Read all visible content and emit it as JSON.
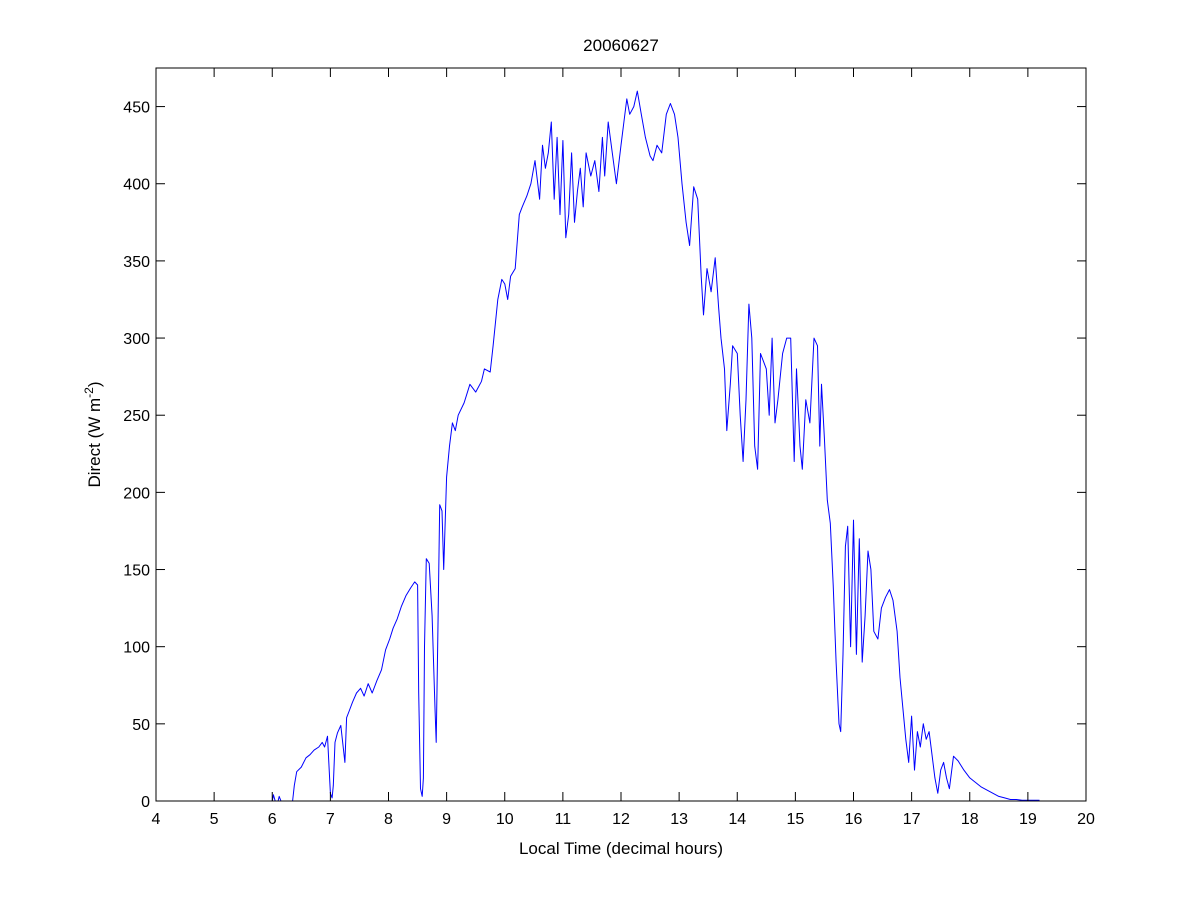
{
  "chart_data": {
    "type": "line",
    "title": "20060627",
    "xlabel": "Local Time (decimal hours)",
    "ylabel": {
      "prefix": "Direct (W m",
      "superscript": "-2",
      "suffix": ")"
    },
    "xlim": [
      4,
      20
    ],
    "ylim": [
      0,
      475
    ],
    "xticks": [
      4,
      5,
      6,
      7,
      8,
      9,
      10,
      11,
      12,
      13,
      14,
      15,
      16,
      17,
      18,
      19,
      20
    ],
    "yticks": [
      0,
      50,
      100,
      150,
      200,
      250,
      300,
      350,
      400,
      450
    ],
    "grid": false,
    "legend": "none",
    "series_color": "#0000ff",
    "series": [
      {
        "points": [
          [
            5.45,
            0
          ],
          [
            6.0,
            0
          ],
          [
            6.02,
            4
          ],
          [
            6.05,
            0
          ],
          [
            6.1,
            0
          ],
          [
            6.12,
            3
          ],
          [
            6.15,
            0
          ],
          [
            6.35,
            0
          ],
          [
            6.38,
            10
          ],
          [
            6.42,
            19
          ],
          [
            6.5,
            22
          ],
          [
            6.58,
            28
          ],
          [
            6.65,
            30
          ],
          [
            6.72,
            33
          ],
          [
            6.8,
            35
          ],
          [
            6.86,
            38
          ],
          [
            6.9,
            35
          ],
          [
            6.95,
            42
          ],
          [
            6.98,
            20
          ],
          [
            7.0,
            5
          ],
          [
            7.03,
            2
          ],
          [
            7.05,
            10
          ],
          [
            7.08,
            38
          ],
          [
            7.12,
            44
          ],
          [
            7.18,
            49
          ],
          [
            7.25,
            25
          ],
          [
            7.28,
            54
          ],
          [
            7.32,
            58
          ],
          [
            7.38,
            64
          ],
          [
            7.45,
            70
          ],
          [
            7.52,
            73
          ],
          [
            7.58,
            68
          ],
          [
            7.65,
            76
          ],
          [
            7.72,
            70
          ],
          [
            7.8,
            78
          ],
          [
            7.88,
            85
          ],
          [
            7.95,
            98
          ],
          [
            8.02,
            105
          ],
          [
            8.08,
            112
          ],
          [
            8.15,
            118
          ],
          [
            8.22,
            126
          ],
          [
            8.3,
            133
          ],
          [
            8.38,
            138
          ],
          [
            8.45,
            142
          ],
          [
            8.5,
            140
          ],
          [
            8.52,
            70
          ],
          [
            8.55,
            8
          ],
          [
            8.58,
            3
          ],
          [
            8.6,
            15
          ],
          [
            8.62,
            100
          ],
          [
            8.65,
            157
          ],
          [
            8.7,
            154
          ],
          [
            8.75,
            120
          ],
          [
            8.8,
            60
          ],
          [
            8.82,
            38
          ],
          [
            8.85,
            110
          ],
          [
            8.88,
            192
          ],
          [
            8.92,
            188
          ],
          [
            8.95,
            150
          ],
          [
            9.0,
            210
          ],
          [
            9.05,
            230
          ],
          [
            9.1,
            245
          ],
          [
            9.15,
            240
          ],
          [
            9.2,
            250
          ],
          [
            9.3,
            258
          ],
          [
            9.4,
            270
          ],
          [
            9.5,
            265
          ],
          [
            9.6,
            272
          ],
          [
            9.65,
            280
          ],
          [
            9.75,
            278
          ],
          [
            9.8,
            295
          ],
          [
            9.88,
            325
          ],
          [
            9.95,
            338
          ],
          [
            10.0,
            335
          ],
          [
            10.05,
            325
          ],
          [
            10.1,
            340
          ],
          [
            10.18,
            345
          ],
          [
            10.25,
            380
          ],
          [
            10.3,
            385
          ],
          [
            10.38,
            392
          ],
          [
            10.45,
            400
          ],
          [
            10.52,
            415
          ],
          [
            10.6,
            390
          ],
          [
            10.65,
            425
          ],
          [
            10.7,
            410
          ],
          [
            10.75,
            420
          ],
          [
            10.8,
            440
          ],
          [
            10.85,
            390
          ],
          [
            10.9,
            430
          ],
          [
            10.95,
            380
          ],
          [
            11.0,
            428
          ],
          [
            11.05,
            365
          ],
          [
            11.1,
            380
          ],
          [
            11.15,
            420
          ],
          [
            11.2,
            375
          ],
          [
            11.25,
            395
          ],
          [
            11.3,
            410
          ],
          [
            11.35,
            385
          ],
          [
            11.4,
            420
          ],
          [
            11.48,
            405
          ],
          [
            11.55,
            415
          ],
          [
            11.62,
            395
          ],
          [
            11.68,
            430
          ],
          [
            11.72,
            405
          ],
          [
            11.78,
            440
          ],
          [
            11.85,
            420
          ],
          [
            11.92,
            400
          ],
          [
            12.0,
            425
          ],
          [
            12.05,
            440
          ],
          [
            12.1,
            455
          ],
          [
            12.15,
            445
          ],
          [
            12.22,
            450
          ],
          [
            12.28,
            460
          ],
          [
            12.35,
            445
          ],
          [
            12.42,
            430
          ],
          [
            12.5,
            418
          ],
          [
            12.55,
            415
          ],
          [
            12.62,
            425
          ],
          [
            12.7,
            420
          ],
          [
            12.78,
            445
          ],
          [
            12.85,
            452
          ],
          [
            12.92,
            445
          ],
          [
            12.98,
            430
          ],
          [
            13.05,
            400
          ],
          [
            13.12,
            375
          ],
          [
            13.18,
            360
          ],
          [
            13.25,
            398
          ],
          [
            13.32,
            390
          ],
          [
            13.38,
            340
          ],
          [
            13.42,
            315
          ],
          [
            13.48,
            345
          ],
          [
            13.55,
            330
          ],
          [
            13.62,
            352
          ],
          [
            13.68,
            320
          ],
          [
            13.72,
            300
          ],
          [
            13.78,
            280
          ],
          [
            13.82,
            240
          ],
          [
            13.88,
            270
          ],
          [
            13.92,
            295
          ],
          [
            14.0,
            290
          ],
          [
            14.05,
            250
          ],
          [
            14.1,
            220
          ],
          [
            14.15,
            260
          ],
          [
            14.2,
            322
          ],
          [
            14.25,
            300
          ],
          [
            14.3,
            230
          ],
          [
            14.35,
            215
          ],
          [
            14.4,
            290
          ],
          [
            14.45,
            285
          ],
          [
            14.5,
            280
          ],
          [
            14.55,
            250
          ],
          [
            14.6,
            300
          ],
          [
            14.65,
            245
          ],
          [
            14.7,
            260
          ],
          [
            14.78,
            290
          ],
          [
            14.85,
            300
          ],
          [
            14.92,
            300
          ],
          [
            14.98,
            220
          ],
          [
            15.02,
            280
          ],
          [
            15.08,
            230
          ],
          [
            15.12,
            215
          ],
          [
            15.18,
            260
          ],
          [
            15.25,
            245
          ],
          [
            15.32,
            300
          ],
          [
            15.38,
            295
          ],
          [
            15.42,
            230
          ],
          [
            15.45,
            270
          ],
          [
            15.5,
            235
          ],
          [
            15.55,
            195
          ],
          [
            15.6,
            180
          ],
          [
            15.65,
            140
          ],
          [
            15.7,
            90
          ],
          [
            15.75,
            50
          ],
          [
            15.78,
            45
          ],
          [
            15.82,
            95
          ],
          [
            15.86,
            165
          ],
          [
            15.9,
            178
          ],
          [
            15.95,
            100
          ],
          [
            16.0,
            182
          ],
          [
            16.05,
            95
          ],
          [
            16.1,
            170
          ],
          [
            16.15,
            90
          ],
          [
            16.2,
            120
          ],
          [
            16.25,
            162
          ],
          [
            16.3,
            150
          ],
          [
            16.35,
            110
          ],
          [
            16.42,
            105
          ],
          [
            16.48,
            125
          ],
          [
            16.55,
            132
          ],
          [
            16.62,
            137
          ],
          [
            16.68,
            130
          ],
          [
            16.75,
            110
          ],
          [
            16.8,
            80
          ],
          [
            16.85,
            60
          ],
          [
            16.9,
            40
          ],
          [
            16.95,
            25
          ],
          [
            17.0,
            55
          ],
          [
            17.05,
            20
          ],
          [
            17.1,
            45
          ],
          [
            17.15,
            35
          ],
          [
            17.2,
            50
          ],
          [
            17.25,
            40
          ],
          [
            17.3,
            45
          ],
          [
            17.35,
            30
          ],
          [
            17.4,
            15
          ],
          [
            17.45,
            5
          ],
          [
            17.5,
            20
          ],
          [
            17.55,
            25
          ],
          [
            17.6,
            15
          ],
          [
            17.65,
            8
          ],
          [
            17.72,
            29
          ],
          [
            17.8,
            26
          ],
          [
            17.9,
            20
          ],
          [
            18.0,
            15
          ],
          [
            18.1,
            12
          ],
          [
            18.2,
            9
          ],
          [
            18.3,
            7
          ],
          [
            18.4,
            5
          ],
          [
            18.5,
            3
          ],
          [
            18.6,
            2
          ],
          [
            18.7,
            1
          ],
          [
            18.8,
            1
          ],
          [
            18.9,
            0.5
          ],
          [
            19.0,
            0.5
          ],
          [
            19.1,
            0.5
          ],
          [
            19.2,
            0.5
          ]
        ]
      }
    ]
  }
}
